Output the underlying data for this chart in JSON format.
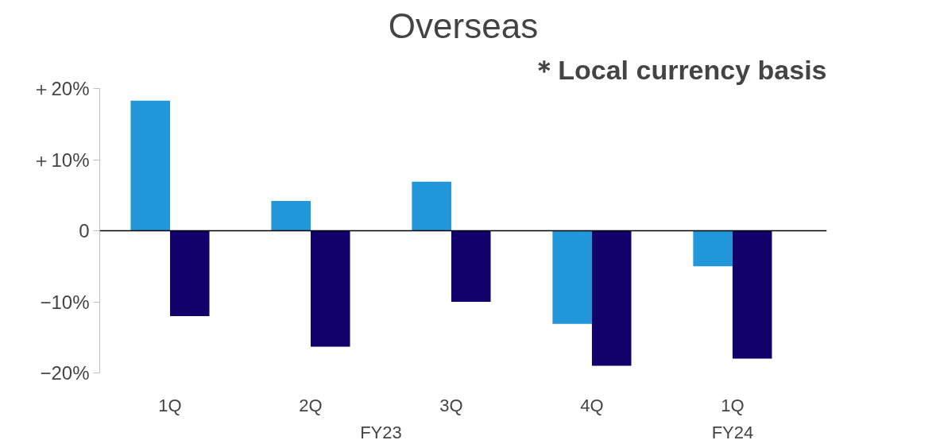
{
  "chart_data": {
    "type": "bar",
    "title": "Overseas",
    "categories": [
      "1Q",
      "2Q",
      "3Q",
      "4Q",
      "1Q"
    ],
    "series": [
      {
        "color": "#2196d8",
        "values": [
          18.3,
          4.2,
          6.9,
          -13.1,
          -5.0
        ]
      },
      {
        "color": "#12006b",
        "values": [
          -12.0,
          -16.3,
          -10.0,
          -19.0,
          -18.0
        ]
      }
    ],
    "ylim": [
      -20,
      20
    ],
    "yticks": [
      {
        "value": -20,
        "label": "−20%"
      },
      {
        "value": -10,
        "label": "−10%"
      },
      0,
      {
        "value": 10,
        "label": "＋10%"
      },
      {
        "value": 20,
        "label": "＋20%"
      }
    ],
    "annotations": [
      "＊Local currency basis",
      "FY23",
      "FY24"
    ]
  }
}
